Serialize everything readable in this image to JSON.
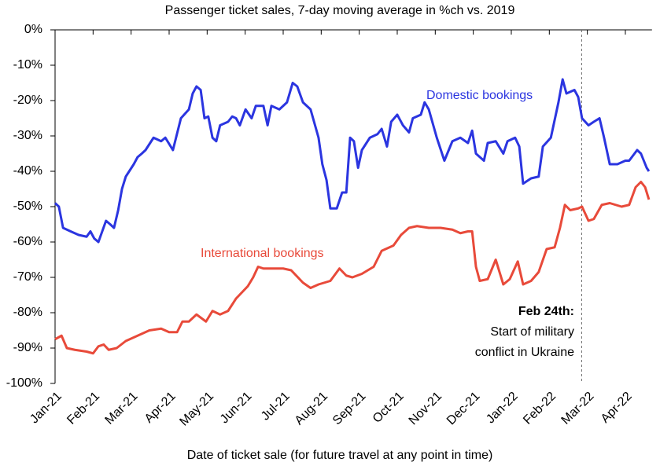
{
  "chart_data": {
    "type": "line",
    "title": "Passenger ticket sales, 7-day moving average in %ch vs. 2019",
    "x_label": "Date of ticket sale (for future travel at any point in time)",
    "xlim": [
      0,
      15.7
    ],
    "xticks": [
      {
        "value": 0,
        "label": "Jan-21"
      },
      {
        "value": 1,
        "label": "Feb-21"
      },
      {
        "value": 2,
        "label": "Mar-21"
      },
      {
        "value": 3,
        "label": "Apr-21"
      },
      {
        "value": 4,
        "label": "May-21"
      },
      {
        "value": 5,
        "label": "Jun-21"
      },
      {
        "value": 6,
        "label": "Jul-21"
      },
      {
        "value": 7,
        "label": "Aug-21"
      },
      {
        "value": 8,
        "label": "Sep-21"
      },
      {
        "value": 9,
        "label": "Oct-21"
      },
      {
        "value": 10,
        "label": "Nov-21"
      },
      {
        "value": 11,
        "label": "Dec-21"
      },
      {
        "value": 12,
        "label": "Jan-22"
      },
      {
        "value": 13,
        "label": "Feb-22"
      },
      {
        "value": 14,
        "label": "Mar-22"
      },
      {
        "value": 15,
        "label": "Apr-22"
      }
    ],
    "ylim": [
      -100,
      0
    ],
    "yticks": [
      {
        "value": 0,
        "label": "0%"
      },
      {
        "value": -10,
        "label": "-10%"
      },
      {
        "value": -20,
        "label": "-20%"
      },
      {
        "value": -30,
        "label": "-30%"
      },
      {
        "value": -40,
        "label": "-40%"
      },
      {
        "value": -50,
        "label": "-50%"
      },
      {
        "value": -60,
        "label": "-60%"
      },
      {
        "value": -70,
        "label": "-70%"
      },
      {
        "value": -80,
        "label": "-80%"
      },
      {
        "value": -90,
        "label": "-90%"
      },
      {
        "value": -100,
        "label": "-100%"
      }
    ],
    "grid": false,
    "annotation": {
      "x": 13.85,
      "heading": "Feb 24th:",
      "lines": [
        "Start of military",
        "conflict in Ukraine"
      ]
    },
    "series": [
      {
        "name": "Domestic bookings",
        "color": "#2b35e0",
        "x": [
          0,
          0.1,
          0.21,
          0.41,
          0.62,
          0.83,
          0.93,
          1.03,
          1.14,
          1.24,
          1.34,
          1.45,
          1.55,
          1.66,
          1.76,
          1.86,
          2.07,
          2.17,
          2.28,
          2.38,
          2.59,
          2.79,
          2.9,
          3.1,
          3.31,
          3.52,
          3.62,
          3.72,
          3.83,
          3.93,
          4.03,
          4.14,
          4.24,
          4.34,
          4.55,
          4.66,
          4.76,
          4.86,
          5.01,
          5.17,
          5.28,
          5.48,
          5.59,
          5.69,
          5.9,
          6.1,
          6.25,
          6.37,
          6.52,
          6.72,
          6.93,
          7.03,
          7.14,
          7.24,
          7.41,
          7.55,
          7.66,
          7.76,
          7.86,
          7.97,
          8.07,
          8.28,
          8.48,
          8.59,
          8.73,
          8.84,
          9.0,
          9.15,
          9.31,
          9.41,
          9.62,
          9.72,
          9.83,
          10.04,
          10.24,
          10.45,
          10.66,
          10.86,
          10.97,
          11.07,
          11.28,
          11.38,
          11.59,
          11.79,
          11.9,
          12.1,
          12.21,
          12.31,
          12.52,
          12.72,
          12.83,
          13.04,
          13.24,
          13.35,
          13.45,
          13.66,
          13.76,
          13.86,
          14.03,
          14.17,
          14.32,
          14.44,
          14.59,
          14.79,
          15.0,
          15.1,
          15.31,
          15.41,
          15.56,
          15.62
        ],
        "values": [
          -49,
          -50,
          -56,
          -57,
          -58,
          -58.5,
          -57,
          -59,
          -60,
          -57,
          -54,
          -55,
          -56,
          -51,
          -45,
          -41.5,
          -38,
          -36,
          -35,
          -34,
          -30.5,
          -31.5,
          -30.5,
          -34,
          -25,
          -22.5,
          -18,
          -16,
          -17,
          -25,
          -24.5,
          -30.5,
          -31.5,
          -27,
          -26,
          -24.5,
          -25,
          -27,
          -22.5,
          -25,
          -21.5,
          -21.5,
          -27,
          -21.5,
          -22.5,
          -20.5,
          -15,
          -16,
          -20.5,
          -22.5,
          -30.5,
          -38,
          -42.5,
          -50.5,
          -50.5,
          -46,
          -46,
          -30.5,
          -31.5,
          -39,
          -34,
          -30.5,
          -29.5,
          -28,
          -33,
          -26,
          -24,
          -27,
          -29,
          -25,
          -24,
          -20.5,
          -22.5,
          -30.5,
          -37,
          -31.5,
          -30.5,
          -32,
          -28.5,
          -35,
          -37,
          -32,
          -31.5,
          -35,
          -31.5,
          -30.5,
          -33,
          -43.5,
          -42,
          -41.5,
          -33,
          -30.5,
          -20.5,
          -14,
          -18,
          -17,
          -19,
          -25,
          -27,
          -26,
          -25,
          -30.5,
          -38,
          -38,
          -37,
          -37,
          -34,
          -35,
          -39,
          -40
        ]
      },
      {
        "name": "International bookings",
        "color": "#e84a3a",
        "x": [
          0,
          0.17,
          0.31,
          0.52,
          0.83,
          1.0,
          1.14,
          1.28,
          1.41,
          1.62,
          1.86,
          2.17,
          2.48,
          2.79,
          3.0,
          3.21,
          3.35,
          3.52,
          3.72,
          3.97,
          4.14,
          4.34,
          4.55,
          4.76,
          5.07,
          5.21,
          5.34,
          5.48,
          5.69,
          6.0,
          6.21,
          6.52,
          6.72,
          6.93,
          7.24,
          7.48,
          7.66,
          7.82,
          8.07,
          8.38,
          8.59,
          8.9,
          9.1,
          9.31,
          9.52,
          9.83,
          10.14,
          10.45,
          10.66,
          10.86,
          10.97,
          11.07,
          11.17,
          11.38,
          11.59,
          11.79,
          11.96,
          12.17,
          12.31,
          12.52,
          12.72,
          12.93,
          13.14,
          13.28,
          13.41,
          13.55,
          13.76,
          13.86,
          14.03,
          14.17,
          14.38,
          14.59,
          14.9,
          15.1,
          15.27,
          15.41,
          15.52,
          15.62
        ],
        "values": [
          -87.5,
          -86.5,
          -90,
          -90.5,
          -91,
          -91.5,
          -89.5,
          -89,
          -90.5,
          -90,
          -88,
          -86.5,
          -85,
          -84.5,
          -85.5,
          -85.5,
          -82.5,
          -82.5,
          -80.5,
          -82.5,
          -79.5,
          -80.5,
          -79.5,
          -76,
          -72.5,
          -70,
          -67,
          -67.5,
          -67.5,
          -67.5,
          -68,
          -71.5,
          -73,
          -72,
          -71,
          -67.5,
          -69.5,
          -70,
          -69,
          -67,
          -62.5,
          -61,
          -58,
          -56,
          -55.5,
          -56,
          -56,
          -56.5,
          -57.5,
          -57,
          -57,
          -67,
          -71,
          -70.5,
          -65,
          -72,
          -70.5,
          -65.5,
          -72,
          -71,
          -68.5,
          -62,
          -61.5,
          -56,
          -49.5,
          -51,
          -50.5,
          -50,
          -54,
          -53.5,
          -49.5,
          -49,
          -50,
          -49.5,
          -44.5,
          -43,
          -44.5,
          -48
        ]
      }
    ]
  }
}
